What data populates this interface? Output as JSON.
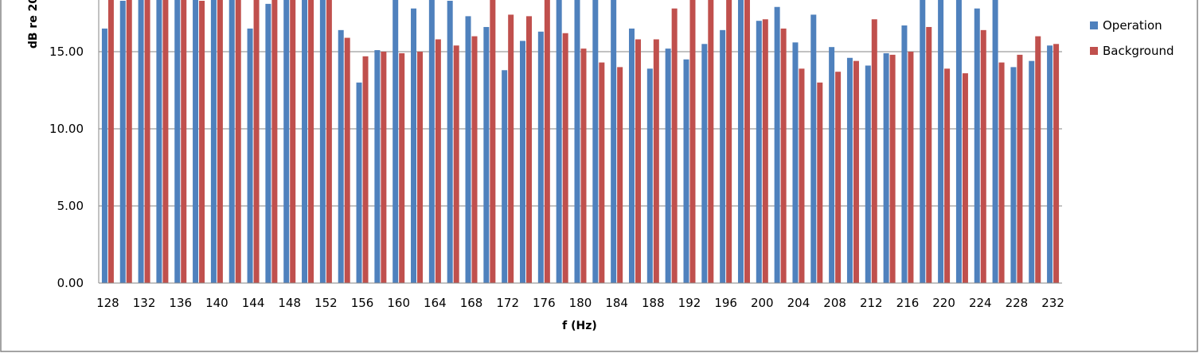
{
  "chart_data": {
    "type": "bar",
    "ylabel": "dB re 20",
    "xlabel": "f (Hz)",
    "ylim": [
      0,
      20
    ],
    "yticks": [
      "0.00",
      "5.00",
      "10.00",
      "15.00"
    ],
    "ytick_values": [
      0,
      5,
      10,
      15
    ],
    "grid": true,
    "legend_position": "right",
    "categories": [
      128,
      130,
      132,
      134,
      136,
      138,
      140,
      142,
      144,
      146,
      148,
      150,
      152,
      154,
      156,
      158,
      160,
      162,
      164,
      166,
      168,
      170,
      172,
      174,
      176,
      178,
      180,
      182,
      184,
      186,
      188,
      190,
      192,
      194,
      196,
      198,
      200,
      202,
      204,
      206,
      208,
      210,
      212,
      214,
      216,
      218,
      220,
      222,
      224,
      226,
      228,
      230,
      232
    ],
    "x_tick_labels": [
      "128",
      "132",
      "136",
      "140",
      "144",
      "148",
      "152",
      "156",
      "160",
      "164",
      "168",
      "172",
      "176",
      "180",
      "184",
      "188",
      "192",
      "196",
      "200",
      "204",
      "208",
      "212",
      "216",
      "220",
      "224",
      "228",
      "232"
    ],
    "series": [
      {
        "name": "Operation",
        "color": "#4F81BD",
        "values": [
          16.5,
          18.3,
          18.6,
          18.6,
          18.6,
          18.6,
          18.6,
          18.6,
          16.5,
          18.1,
          18.6,
          18.6,
          18.6,
          16.4,
          13.0,
          15.1,
          18.6,
          17.8,
          18.6,
          18.3,
          17.3,
          16.6,
          13.8,
          15.7,
          16.3,
          18.6,
          18.6,
          18.6,
          18.6,
          16.5,
          13.9,
          15.2,
          14.5,
          15.5,
          16.4,
          18.6,
          17.0,
          17.9,
          15.6,
          17.4,
          15.3,
          14.6,
          14.1,
          14.9,
          16.7,
          18.6,
          18.6,
          18.6,
          17.8,
          18.6,
          14.0,
          14.4,
          15.4
        ]
      },
      {
        "name": "Background",
        "color": "#C0504D",
        "values": [
          18.6,
          18.6,
          18.6,
          18.6,
          18.6,
          18.3,
          18.6,
          18.6,
          18.6,
          18.6,
          18.6,
          18.6,
          18.6,
          15.9,
          14.7,
          15.0,
          14.9,
          15.0,
          15.8,
          15.4,
          16.0,
          18.6,
          17.4,
          17.3,
          18.6,
          16.2,
          15.2,
          14.3,
          14.0,
          15.8,
          15.8,
          17.8,
          18.6,
          18.4,
          18.6,
          18.6,
          17.1,
          16.5,
          13.9,
          13.0,
          13.7,
          14.4,
          17.1,
          14.8,
          15.0,
          16.6,
          13.9,
          13.6,
          16.4,
          14.3,
          14.8,
          16.0,
          15.5
        ]
      }
    ]
  }
}
